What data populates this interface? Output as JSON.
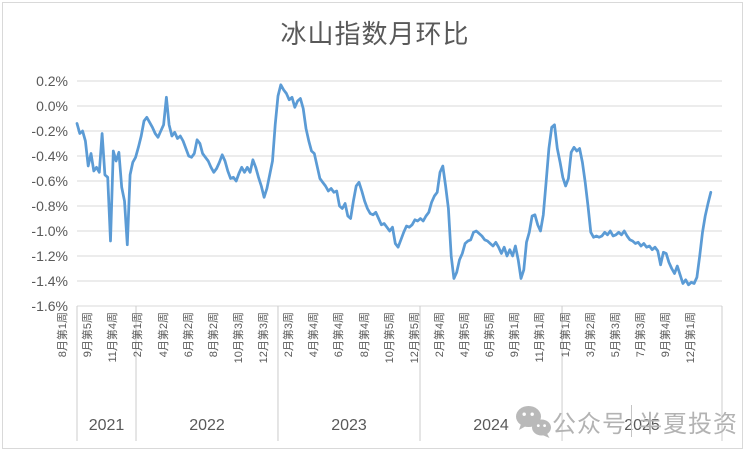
{
  "title": "冰山指数月环比",
  "watermark": {
    "icon": "wechat-icon",
    "prefix": "公众号",
    "name": "半夏投资"
  },
  "colors": {
    "line": "#5B9BD5",
    "gridline": "#d9d9d9",
    "separator": "#cccccc",
    "text": "#595959",
    "watermark": "#b3b3b3",
    "background": "#ffffff"
  },
  "chart_data": {
    "type": "line",
    "title": "冰山指数月环比",
    "xlabel": "",
    "ylabel": "",
    "unit": "%",
    "grid": true,
    "legend": "none",
    "ylim": [
      -1.6,
      0.2
    ],
    "y_ticks": [
      "0.2%",
      "0.0%",
      "-0.2%",
      "-0.4%",
      "-0.6%",
      "-0.8%",
      "-1.0%",
      "-1.2%",
      "-1.4%",
      "-1.6%"
    ],
    "y_tick_values": [
      0.2,
      0.0,
      -0.2,
      -0.4,
      -0.6,
      -0.8,
      -1.0,
      -1.2,
      -1.4,
      -1.6
    ],
    "x_tick_labels": [
      "8月第1周",
      "9月第5周",
      "11月第4周",
      "2月第1周",
      "4月第2周",
      "6月第2周",
      "8月第2周",
      "10月第3周",
      "12月第3周",
      "2月第3周",
      "4月第4周",
      "6月第4周",
      "8月第4周",
      "10月第5周",
      "12月第5周",
      "2月第4周",
      "4月第5周",
      "6月第5周",
      "9月第1周",
      "11月第1周",
      "1月第1周",
      "3月第2周",
      "5月第3周",
      "7月第3周",
      "9月第4周",
      "12月第1周"
    ],
    "x_tick_every": 9,
    "total_slots": 231,
    "year_groups": {
      "labels": [
        "2021",
        "2022",
        "2023",
        "2024",
        "2025"
      ],
      "boundaries_frac": [
        0,
        0.0915,
        0.3116,
        0.5318,
        0.752,
        1.0
      ]
    },
    "series": [
      {
        "name": "冰山指数月环比",
        "color": "#5B9BD5",
        "values": [
          -0.14,
          -0.22,
          -0.2,
          -0.28,
          -0.48,
          -0.38,
          -0.52,
          -0.49,
          -0.53,
          -0.22,
          -0.55,
          -0.57,
          -1.08,
          -0.36,
          -0.44,
          -0.37,
          -0.65,
          -0.76,
          -1.11,
          -0.55,
          -0.45,
          -0.41,
          -0.33,
          -0.24,
          -0.12,
          -0.09,
          -0.13,
          -0.17,
          -0.22,
          -0.25,
          -0.2,
          -0.15,
          0.07,
          -0.15,
          -0.24,
          -0.21,
          -0.26,
          -0.24,
          -0.28,
          -0.34,
          -0.4,
          -0.41,
          -0.38,
          -0.27,
          -0.3,
          -0.38,
          -0.41,
          -0.44,
          -0.49,
          -0.53,
          -0.5,
          -0.45,
          -0.39,
          -0.44,
          -0.52,
          -0.58,
          -0.57,
          -0.6,
          -0.54,
          -0.49,
          -0.53,
          -0.49,
          -0.53,
          -0.43,
          -0.49,
          -0.57,
          -0.64,
          -0.73,
          -0.66,
          -0.55,
          -0.44,
          -0.15,
          0.08,
          0.17,
          0.13,
          0.1,
          0.05,
          0.07,
          -0.01,
          0.04,
          0.06,
          -0.02,
          -0.18,
          -0.28,
          -0.36,
          -0.38,
          -0.48,
          -0.58,
          -0.61,
          -0.64,
          -0.68,
          -0.66,
          -0.69,
          -0.68,
          -0.8,
          -0.82,
          -0.78,
          -0.88,
          -0.9,
          -0.76,
          -0.64,
          -0.61,
          -0.68,
          -0.76,
          -0.82,
          -0.86,
          -0.87,
          -0.85,
          -0.9,
          -0.95,
          -0.94,
          -0.97,
          -1.0,
          -0.97,
          -1.1,
          -1.13,
          -1.07,
          -1.01,
          -0.96,
          -0.97,
          -0.95,
          -0.91,
          -0.92,
          -0.9,
          -0.92,
          -0.88,
          -0.85,
          -0.77,
          -0.72,
          -0.69,
          -0.53,
          -0.48,
          -0.64,
          -0.82,
          -1.2,
          -1.38,
          -1.33,
          -1.23,
          -1.18,
          -1.1,
          -1.08,
          -1.07,
          -1.01,
          -1.0,
          -1.02,
          -1.04,
          -1.07,
          -1.08,
          -1.1,
          -1.12,
          -1.09,
          -1.13,
          -1.18,
          -1.13,
          -1.2,
          -1.15,
          -1.2,
          -1.12,
          -1.23,
          -1.38,
          -1.31,
          -1.09,
          -1.01,
          -0.88,
          -0.87,
          -0.95,
          -1.0,
          -0.87,
          -0.61,
          -0.34,
          -0.17,
          -0.15,
          -0.34,
          -0.45,
          -0.57,
          -0.64,
          -0.58,
          -0.37,
          -0.33,
          -0.36,
          -0.34,
          -0.45,
          -0.61,
          -0.8,
          -1.01,
          -1.05,
          -1.04,
          -1.05,
          -1.04,
          -1.01,
          -1.03,
          -1.0,
          -1.04,
          -1.03,
          -1.01,
          -1.03,
          -1.0,
          -1.04,
          -1.07,
          -1.08,
          -1.1,
          -1.09,
          -1.12,
          -1.1,
          -1.13,
          -1.12,
          -1.15,
          -1.13,
          -1.16,
          -1.27,
          -1.17,
          -1.18,
          -1.25,
          -1.3,
          -1.34,
          -1.28,
          -1.35,
          -1.42,
          -1.39,
          -1.43,
          -1.41,
          -1.42,
          -1.37,
          -1.2,
          -1.01,
          -0.88,
          -0.78,
          -0.69
        ]
      }
    ]
  }
}
